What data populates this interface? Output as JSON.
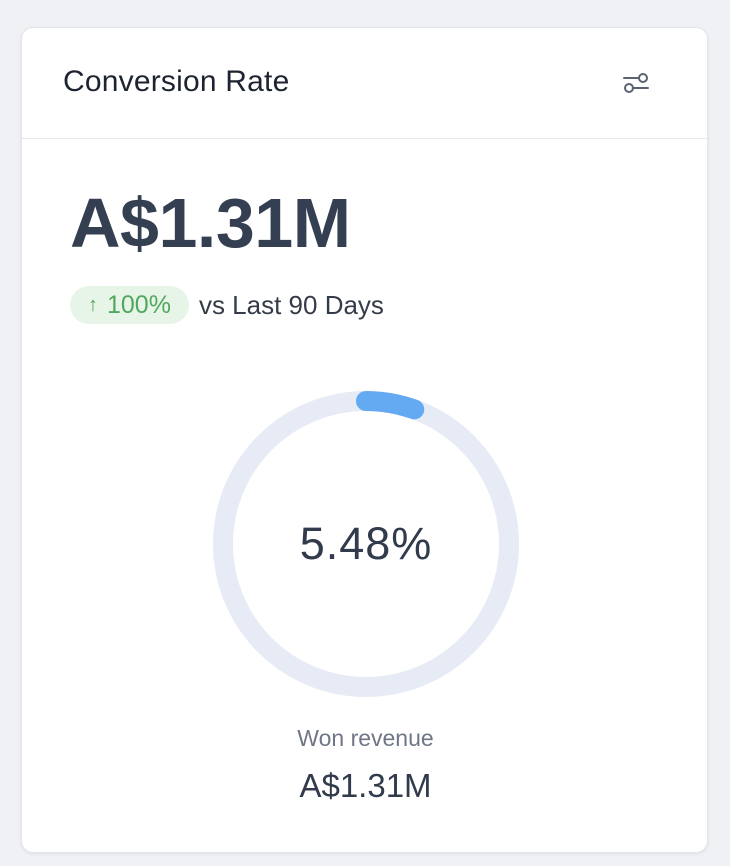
{
  "card": {
    "title": "Conversion Rate",
    "filter_icon": "sliders-icon"
  },
  "summary": {
    "value": "A$1.31M",
    "delta": "100%",
    "delta_icon": "arrow-up-icon",
    "delta_direction": "up",
    "comparison": "vs Last 90 Days"
  },
  "gauge": {
    "center_label": "5.48%",
    "progress_fraction": 0.0548,
    "track_color": "#e7ebf5",
    "progress_color": "#64aaf2"
  },
  "footer": {
    "label": "Won revenue",
    "value": "A$1.31M"
  },
  "colors": {
    "positive_bg": "#e6f5e8",
    "positive_text": "#53a65d"
  }
}
